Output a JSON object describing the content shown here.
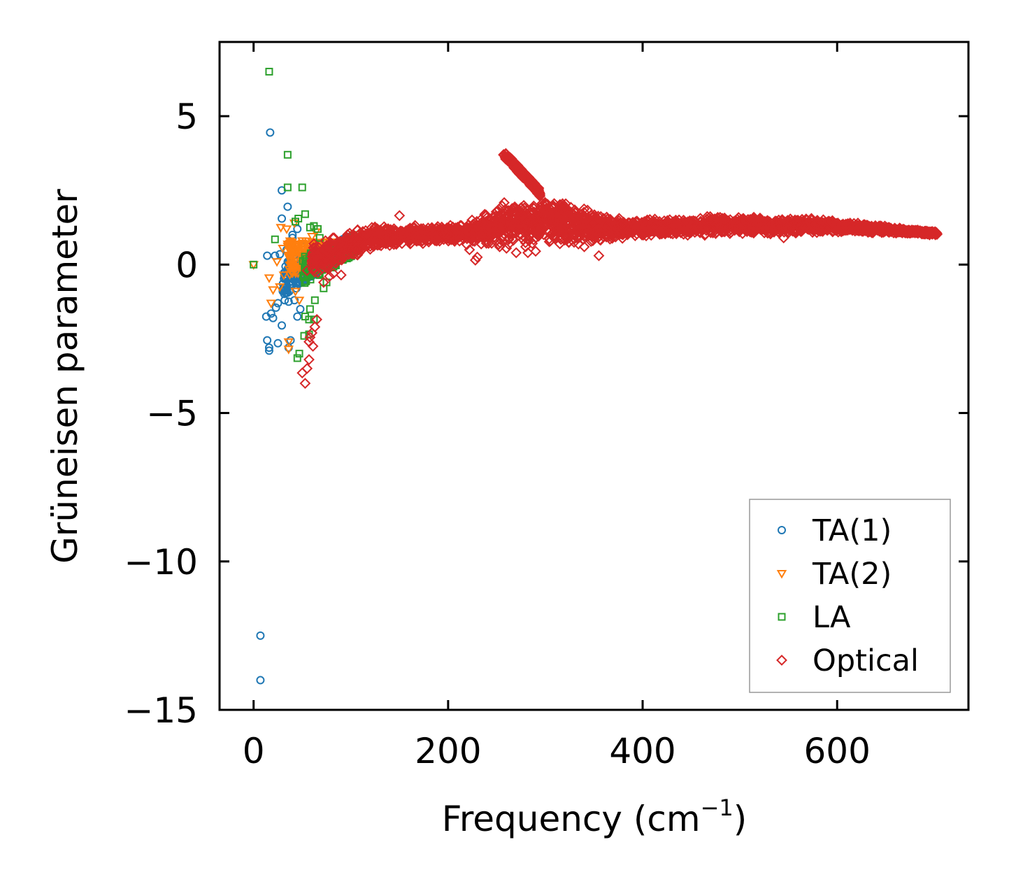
{
  "chart_data": {
    "type": "scatter",
    "xlabel": "Frequency (cm",
    "xlabel_sup": "−1",
    "xlabel_end": ")",
    "ylabel": "Grüneisen parameter",
    "xlim": [
      -35,
      735
    ],
    "ylim": [
      -15,
      7.5
    ],
    "xticks": [
      0,
      200,
      400,
      600
    ],
    "xtick_labels": [
      "0",
      "200",
      "400",
      "600"
    ],
    "yticks": [
      5,
      0,
      -5,
      -10,
      -15
    ],
    "ytick_labels": [
      "5",
      "0",
      "−5",
      "−10",
      "−15"
    ],
    "legend_position": "lower-right",
    "colors": {
      "ta1": "#1f77b4",
      "ta2": "#ff7f0e",
      "la": "#2ca02c",
      "optical": "#d62728"
    },
    "series": [
      {
        "name": "TA(1)",
        "marker": "circle",
        "color_key": "ta1",
        "points": [
          [
            7,
            -12.5
          ],
          [
            7,
            -14.0
          ],
          [
            17,
            4.45
          ],
          [
            29,
            2.5
          ],
          [
            35,
            1.95
          ],
          [
            29,
            1.55
          ],
          [
            14,
            0.3
          ],
          [
            22,
            0.3
          ],
          [
            27,
            0.35
          ],
          [
            34,
            0.5
          ],
          [
            40,
            1.0
          ],
          [
            45,
            1.2
          ],
          [
            13,
            -1.75
          ],
          [
            18,
            -1.65
          ],
          [
            20,
            -1.8
          ],
          [
            23,
            -1.45
          ],
          [
            25,
            -1.3
          ],
          [
            29,
            -2.05
          ],
          [
            14,
            -2.55
          ],
          [
            16,
            -2.8
          ],
          [
            16,
            -2.9
          ],
          [
            25,
            -2.65
          ],
          [
            38,
            -2.55
          ],
          [
            36,
            -2.8
          ],
          [
            32,
            -1.2
          ],
          [
            36,
            -1.25
          ],
          [
            42,
            -1.2
          ],
          [
            45,
            -1.75
          ],
          [
            48,
            -1.5
          ],
          [
            30,
            -0.9
          ],
          [
            40,
            0.9
          ],
          [
            38,
            -0.4
          ],
          [
            44,
            -0.8
          ],
          [
            50,
            -0.2
          ],
          [
            52,
            0.6
          ],
          [
            55,
            0.2
          ]
        ],
        "dense_region": {
          "x": [
            30,
            100
          ],
          "y_center_start": -0.5,
          "y_center_end": 0.7,
          "spread": 0.55,
          "count": 420,
          "seed": 11
        }
      },
      {
        "name": "TA(2)",
        "marker": "triangle-down",
        "color_key": "ta2",
        "points": [
          [
            0,
            0.0
          ],
          [
            28,
            1.25
          ],
          [
            34,
            1.2
          ],
          [
            42,
            1.4
          ],
          [
            16,
            -0.45
          ],
          [
            20,
            -0.85
          ],
          [
            27,
            -0.75
          ],
          [
            31,
            -0.35
          ],
          [
            18,
            -1.3
          ],
          [
            36,
            -2.6
          ],
          [
            36,
            -2.85
          ],
          [
            43,
            -0.9
          ],
          [
            47,
            -1.2
          ],
          [
            50,
            0.8
          ],
          [
            24,
            0.1
          ],
          [
            30,
            0.55
          ],
          [
            36,
            0.65
          ],
          [
            55,
            -0.35
          ],
          [
            60,
            0.95
          ],
          [
            64,
            1.1
          ],
          [
            38,
            0.3
          ],
          [
            44,
            0.4
          ]
        ],
        "dense_region": {
          "x": [
            35,
            95
          ],
          "y_center_start": 0.2,
          "y_center_end": 0.5,
          "spread": 0.6,
          "count": 200,
          "seed": 23
        }
      },
      {
        "name": "LA",
        "marker": "square",
        "color_key": "la",
        "points": [
          [
            16,
            6.5
          ],
          [
            35,
            3.7
          ],
          [
            35,
            2.6
          ],
          [
            50,
            2.6
          ],
          [
            43,
            1.45
          ],
          [
            46,
            1.55
          ],
          [
            53,
            1.7
          ],
          [
            58,
            1.25
          ],
          [
            62,
            1.3
          ],
          [
            66,
            1.2
          ],
          [
            22,
            0.85
          ],
          [
            0,
            0.0
          ],
          [
            45,
            -3.15
          ],
          [
            47,
            -3.0
          ],
          [
            52,
            -2.4
          ],
          [
            57,
            -1.85
          ],
          [
            62,
            -1.85
          ],
          [
            58,
            -1.5
          ],
          [
            53,
            -1.75
          ],
          [
            63,
            -1.2
          ],
          [
            57,
            -2.35
          ],
          [
            72,
            -0.8
          ],
          [
            75,
            -0.6
          ],
          [
            68,
            0.9
          ],
          [
            78,
            0.3
          ],
          [
            85,
            0.5
          ],
          [
            95,
            0.7
          ],
          [
            103,
            1.0
          ],
          [
            104,
            0.75
          ],
          [
            100,
            0.55
          ],
          [
            60,
            0.3
          ],
          [
            65,
            -0.2
          ],
          [
            70,
            0.0
          ],
          [
            80,
            -0.1
          ]
        ],
        "dense_region": {
          "x": [
            50,
            105
          ],
          "y_center_start": -0.2,
          "y_center_end": 0.6,
          "spread": 0.5,
          "count": 160,
          "seed": 37
        }
      },
      {
        "name": "Optical",
        "marker": "diamond",
        "color_key": "optical",
        "points": [
          [
            53,
            -4.0
          ],
          [
            50,
            -3.65
          ],
          [
            55,
            -3.5
          ],
          [
            57,
            -3.2
          ],
          [
            57,
            -2.6
          ],
          [
            61,
            -2.75
          ],
          [
            60,
            -2.3
          ],
          [
            63,
            -2.1
          ],
          [
            65,
            -1.85
          ],
          [
            58,
            -2.45
          ],
          [
            72,
            -0.6
          ],
          [
            78,
            -0.4
          ],
          [
            82,
            -0.3
          ],
          [
            90,
            -0.35
          ],
          [
            60,
            0.1
          ],
          [
            65,
            0.3
          ],
          [
            55,
            -0.2
          ],
          [
            62,
            0.7
          ],
          [
            228,
            0.15
          ],
          [
            230,
            0.25
          ],
          [
            222,
            0.5
          ],
          [
            253,
            0.6
          ],
          [
            270,
            0.4
          ],
          [
            282,
            0.4
          ],
          [
            290,
            0.45
          ],
          [
            260,
            0.55
          ],
          [
            340,
            0.6
          ],
          [
            355,
            0.3
          ],
          [
            150,
            1.65
          ],
          [
            545,
            0.9
          ],
          [
            700,
            1.05
          ],
          [
            695,
            1.0
          ],
          [
            690,
            1.1
          ]
        ],
        "band": {
          "x_start": 60,
          "x_end": 703,
          "center": [
            [
              60,
              0.1
            ],
            [
              90,
              0.55
            ],
            [
              120,
              0.9
            ],
            [
              160,
              1.0
            ],
            [
              200,
              1.05
            ],
            [
              230,
              1.15
            ],
            [
              260,
              1.35
            ],
            [
              290,
              1.45
            ],
            [
              320,
              1.45
            ],
            [
              350,
              1.25
            ],
            [
              380,
              1.2
            ],
            [
              420,
              1.25
            ],
            [
              460,
              1.3
            ],
            [
              500,
              1.35
            ],
            [
              540,
              1.3
            ],
            [
              580,
              1.3
            ],
            [
              620,
              1.25
            ],
            [
              660,
              1.15
            ],
            [
              703,
              1.05
            ]
          ],
          "halfwidth": [
            [
              60,
              0.7
            ],
            [
              90,
              0.65
            ],
            [
              120,
              0.55
            ],
            [
              160,
              0.35
            ],
            [
              200,
              0.3
            ],
            [
              230,
              0.65
            ],
            [
              260,
              0.85
            ],
            [
              290,
              1.0
            ],
            [
              320,
              0.95
            ],
            [
              350,
              0.6
            ],
            [
              380,
              0.4
            ],
            [
              420,
              0.35
            ],
            [
              460,
              0.4
            ],
            [
              500,
              0.35
            ],
            [
              540,
              0.35
            ],
            [
              580,
              0.3
            ],
            [
              620,
              0.2
            ],
            [
              660,
              0.12
            ],
            [
              703,
              0.07
            ]
          ],
          "count": 3200,
          "seed": 53
        },
        "spike": {
          "x": [
            257,
            295
          ],
          "y_start": 3.75,
          "y_end": 2.4,
          "spread": 0.12,
          "count": 140,
          "seed": 71
        }
      }
    ]
  }
}
